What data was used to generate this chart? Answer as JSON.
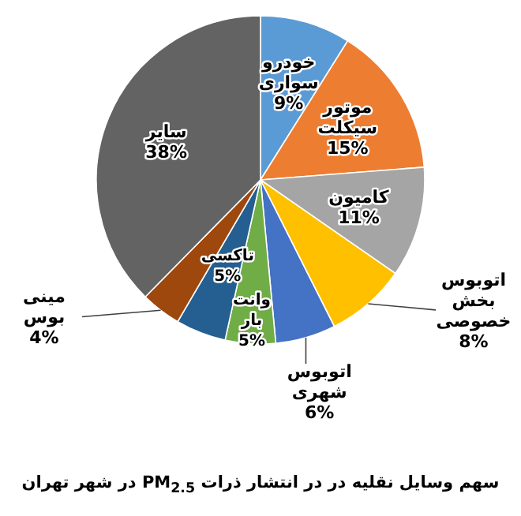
{
  "chart_data": {
    "type": "pie",
    "title": "سهم وسایل نقلیه در در انتشار ذرات PM$_{2.5}$ در شهر تهران",
    "categories": [
      "خودرو سواری",
      "موتور سیکلت",
      "کامیون",
      "اتوبوس بخش خصوصی",
      "اتوبوس شهری",
      "وانت بار",
      "تاکسی",
      "مینی بوس",
      "سایر"
    ],
    "values": [
      9,
      15,
      11,
      8,
      6,
      5,
      5,
      4,
      38
    ],
    "value_labels": [
      "9%",
      "15%",
      "11%",
      "8%",
      "6%",
      "5%",
      "5%",
      "4%",
      "38%"
    ],
    "colors": [
      "#5b9bd5",
      "#ed7d31",
      "#a5a5a5",
      "#ffc000",
      "#4472c4",
      "#70ad47",
      "#255e91",
      "#9e480e",
      "#636363"
    ]
  }
}
